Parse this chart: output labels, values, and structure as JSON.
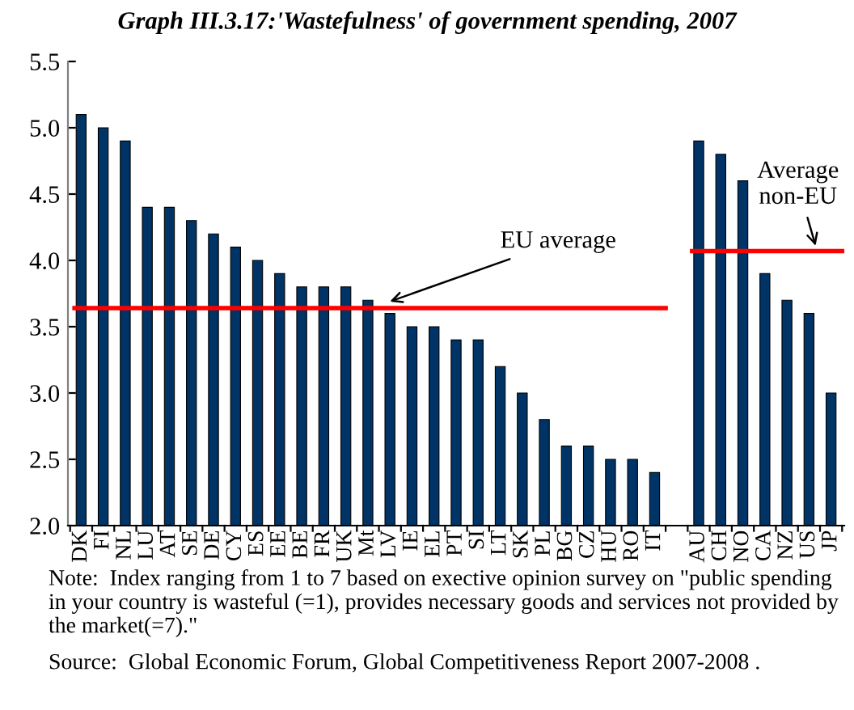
{
  "chart_data": {
    "type": "bar",
    "title": "Graph III.3.17:'Wastefulness' of government spending, 2007",
    "categories": [
      "DK",
      "FI",
      "NL",
      "LU",
      "AT",
      "SE",
      "DE",
      "CY",
      "ES",
      "EE",
      "BE",
      "FR",
      "UK",
      "Mt",
      "LV",
      "IE",
      "EL",
      "PT",
      "SI",
      "LT",
      "SK",
      "PL",
      "BG",
      "CZ",
      "HU",
      "RO",
      "IT",
      null,
      "AU",
      "CH",
      "NO",
      "CA",
      "NZ",
      "US",
      "JP"
    ],
    "values": [
      5.1,
      5.0,
      4.9,
      4.4,
      4.4,
      4.3,
      4.2,
      4.1,
      4.0,
      3.9,
      3.8,
      3.8,
      3.8,
      3.7,
      3.6,
      3.5,
      3.5,
      3.4,
      3.4,
      3.2,
      3.0,
      2.8,
      2.6,
      2.6,
      2.5,
      2.5,
      2.4,
      null,
      4.9,
      4.8,
      4.6,
      3.9,
      3.7,
      3.6,
      3.0
    ],
    "color": "#003366",
    "ylim": [
      2.0,
      5.5
    ],
    "yticks": [
      {
        "value": 2.0,
        "label": "2.0"
      },
      {
        "value": 2.5,
        "label": "2.5"
      },
      {
        "value": 3.0,
        "label": "3.0"
      },
      {
        "value": 3.5,
        "label": "3.5"
      },
      {
        "value": 4.0,
        "label": "4.0"
      },
      {
        "value": 4.5,
        "label": "4.5"
      },
      {
        "value": 5.0,
        "label": "5.0"
      },
      {
        "value": 5.5,
        "label": "5.5"
      }
    ],
    "ref_lines": [
      {
        "axis": "y",
        "value": 3.64,
        "label": "EU average",
        "color": "#ff0000"
      },
      {
        "axis": "y",
        "value": 4.07,
        "label": "Average\nnon-EU",
        "color": "#ff0000"
      }
    ],
    "grid": false,
    "legend": false,
    "annotations": [
      "Note:  Index ranging from 1 to 7 based on exective opinion survey on \"public spending in your country is wasteful (=1), provides necessary goods and services not provided by the market(=7).\"",
      "Source:  Global Economic Forum, Global Competitiveness Report 2007-2008 ."
    ]
  }
}
